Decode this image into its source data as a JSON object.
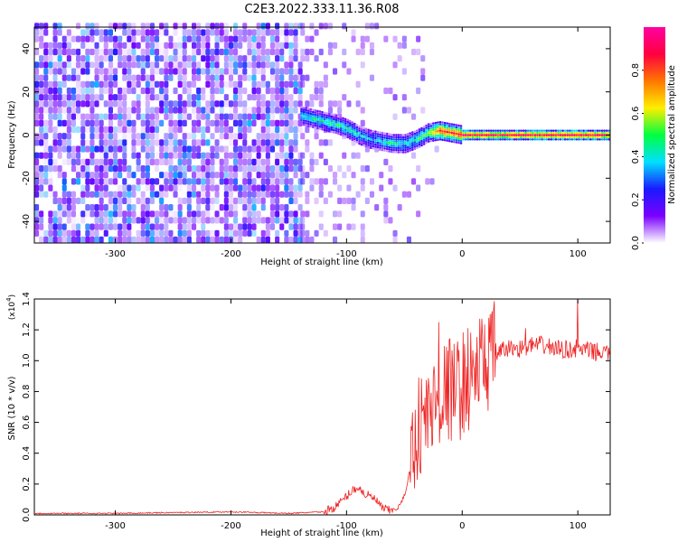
{
  "title": "C2E3.2022.333.11.36.R08",
  "chart_data": [
    {
      "type": "heatmap",
      "xlabel": "Height of straight line (km)",
      "ylabel": "Frequency (Hz)",
      "xlim": [
        -370,
        128
      ],
      "ylim": [
        -50,
        50
      ],
      "x_ticks": [
        -300,
        -200,
        -100,
        0,
        100
      ],
      "y_ticks": [
        -40,
        -20,
        0,
        20,
        40
      ],
      "colorbar": {
        "label": "Normalized spectral amplitude",
        "range": [
          0.0,
          1.0
        ],
        "ticks": [
          "0.0",
          "0.2",
          "0.4",
          "0.6",
          "0.8"
        ],
        "colors": [
          "#ffffff",
          "#7a00ff",
          "#1a1aff",
          "#00e0ff",
          "#00ff40",
          "#ffee00",
          "#ff7700",
          "#ff0040",
          "#ff00a0"
        ]
      },
      "noise_region_x": [
        -370,
        -140
      ],
      "signal_track": {
        "x": [
          -140,
          -125,
          -110,
          -100,
          -90,
          -80,
          -70,
          -60,
          -50,
          -40,
          -30,
          -20,
          -10,
          0,
          25,
          50,
          75,
          100,
          128
        ],
        "frequency": [
          9,
          7,
          5,
          3,
          0,
          -2,
          -3,
          -4,
          -4,
          -2,
          1,
          2,
          1,
          0,
          0,
          0,
          0,
          0,
          0
        ],
        "amplitude": [
          0.4,
          0.45,
          0.45,
          0.45,
          0.4,
          0.35,
          0.4,
          0.45,
          0.4,
          0.45,
          0.55,
          0.85,
          0.8,
          0.9,
          0.85,
          0.85,
          0.9,
          0.9,
          0.85
        ]
      }
    },
    {
      "type": "line",
      "xlabel": "Height of straight line (km)",
      "ylabel": "SNR (10 * v/v)",
      "scale_label": "(x10",
      "scale_exponent": "4",
      "scale_suffix": ")",
      "xlim": [
        -370,
        128
      ],
      "ylim": [
        0.0,
        1.4
      ],
      "x_ticks": [
        -300,
        -200,
        -100,
        0,
        100
      ],
      "y_ticks": [
        "0.0",
        "0.2",
        "0.4",
        "0.6",
        "0.8",
        "1.0",
        "1.2",
        "1.4"
      ],
      "series": [
        {
          "color": "#ee2222",
          "x": [
            -370,
            -300,
            -200,
            -150,
            -120,
            -110,
            -100,
            -95,
            -90,
            -85,
            -80,
            -75,
            -70,
            -65,
            -60,
            -55,
            -50,
            -45,
            -40,
            -35,
            -30,
            -25,
            -20,
            -15,
            -10,
            -5,
            0,
            10,
            20,
            30,
            40,
            50,
            60,
            70,
            80,
            90,
            100,
            110,
            128
          ],
          "values": [
            0.01,
            0.01,
            0.02,
            0.01,
            0.02,
            0.05,
            0.12,
            0.16,
            0.18,
            0.14,
            0.12,
            0.1,
            0.05,
            0.03,
            0.03,
            0.05,
            0.12,
            0.3,
            0.55,
            0.6,
            0.65,
            0.7,
            0.75,
            0.8,
            0.82,
            0.8,
            0.85,
            0.92,
            1.0,
            1.05,
            1.08,
            1.08,
            1.1,
            1.1,
            1.08,
            1.07,
            1.08,
            1.06,
            1.05
          ]
        }
      ],
      "peaks": [
        {
          "x": -20,
          "y": 1.25
        },
        {
          "x": 55,
          "y": 1.21
        },
        {
          "x": 100,
          "y": 1.41
        }
      ]
    }
  ]
}
